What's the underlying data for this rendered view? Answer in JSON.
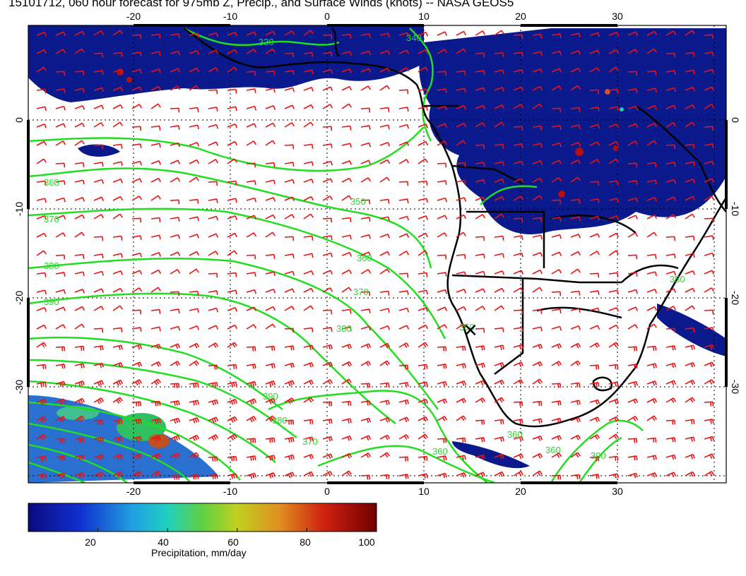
{
  "title": "15101712, 060 hour forecast for 975mb Z, Precip., and Surface Winds (knots) -- NASA GEOS5",
  "map": {
    "lon_ticks": [
      "-20",
      "-10",
      "0",
      "10",
      "20",
      "30"
    ],
    "lat_ticks": [
      "0",
      "-10",
      "-20",
      "-30"
    ],
    "contour_labels": [
      "330",
      "340",
      "350",
      "360",
      "370",
      "380",
      "390"
    ],
    "marker": "×",
    "colors": {
      "land_outline": "#000000",
      "contour": "#22dd22",
      "wind_barb": "#ee1111",
      "precip_low": "#0a1a8c",
      "precip_high": "#b01010",
      "grid": "#000000"
    }
  },
  "colorbar": {
    "ticks": [
      "20",
      "40",
      "60",
      "80",
      "100"
    ],
    "label": "Precipitation, mm/day",
    "range": [
      0,
      100
    ]
  }
}
